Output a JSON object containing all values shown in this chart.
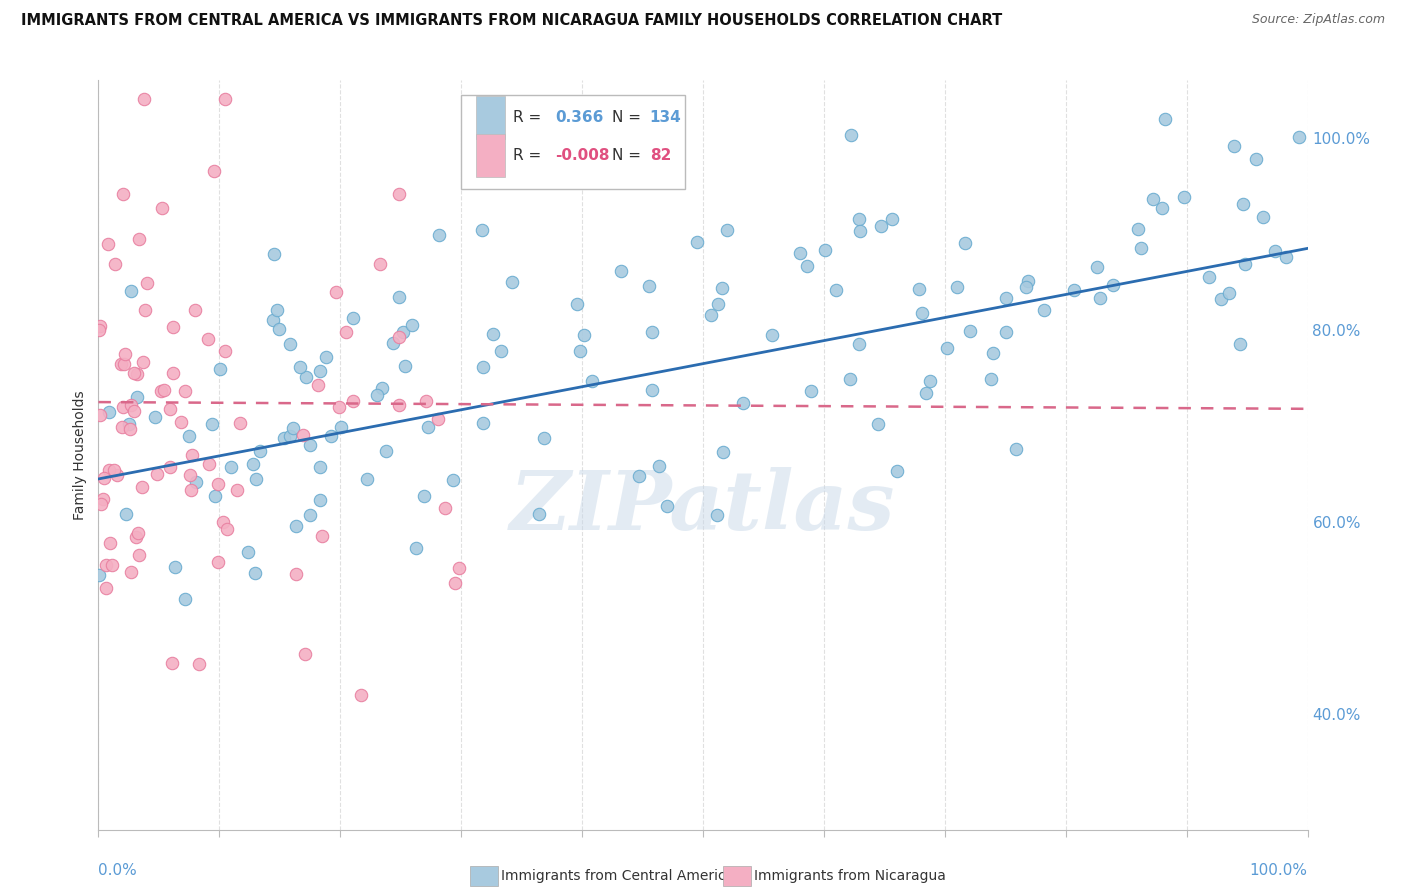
{
  "title": "IMMIGRANTS FROM CENTRAL AMERICA VS IMMIGRANTS FROM NICARAGUA FAMILY HOUSEHOLDS CORRELATION CHART",
  "source": "Source: ZipAtlas.com",
  "ylabel": "Family Households",
  "right_yticks": [
    "100.0%",
    "80.0%",
    "60.0%",
    "40.0%"
  ],
  "right_ytick_vals": [
    1.0,
    0.8,
    0.6,
    0.4
  ],
  "legend_blue_r": "0.366",
  "legend_blue_n": "134",
  "legend_pink_r": "-0.008",
  "legend_pink_n": "82",
  "blue_color": "#a8cadf",
  "blue_edge_color": "#6aacd0",
  "pink_color": "#f4afc3",
  "pink_edge_color": "#e87fa0",
  "blue_line_color": "#2b6cb0",
  "pink_line_color": "#d9688a",
  "watermark": "ZIPatlas",
  "blue_n": 134,
  "pink_n": 82,
  "xmin": 0.0,
  "xmax": 1.0,
  "ymin": 0.28,
  "ymax": 1.06,
  "bg_color": "#ffffff",
  "grid_color": "#e0e0e0",
  "title_fontsize": 10.5,
  "source_fontsize": 9,
  "watermark_fontsize": 60,
  "watermark_color": "#c8d8e8",
  "watermark_alpha": 0.5,
  "blue_trend_x": [
    0.0,
    1.0
  ],
  "blue_trend_y": [
    0.645,
    0.885
  ],
  "pink_trend_x": [
    0.0,
    1.0
  ],
  "pink_trend_y": [
    0.725,
    0.718
  ]
}
